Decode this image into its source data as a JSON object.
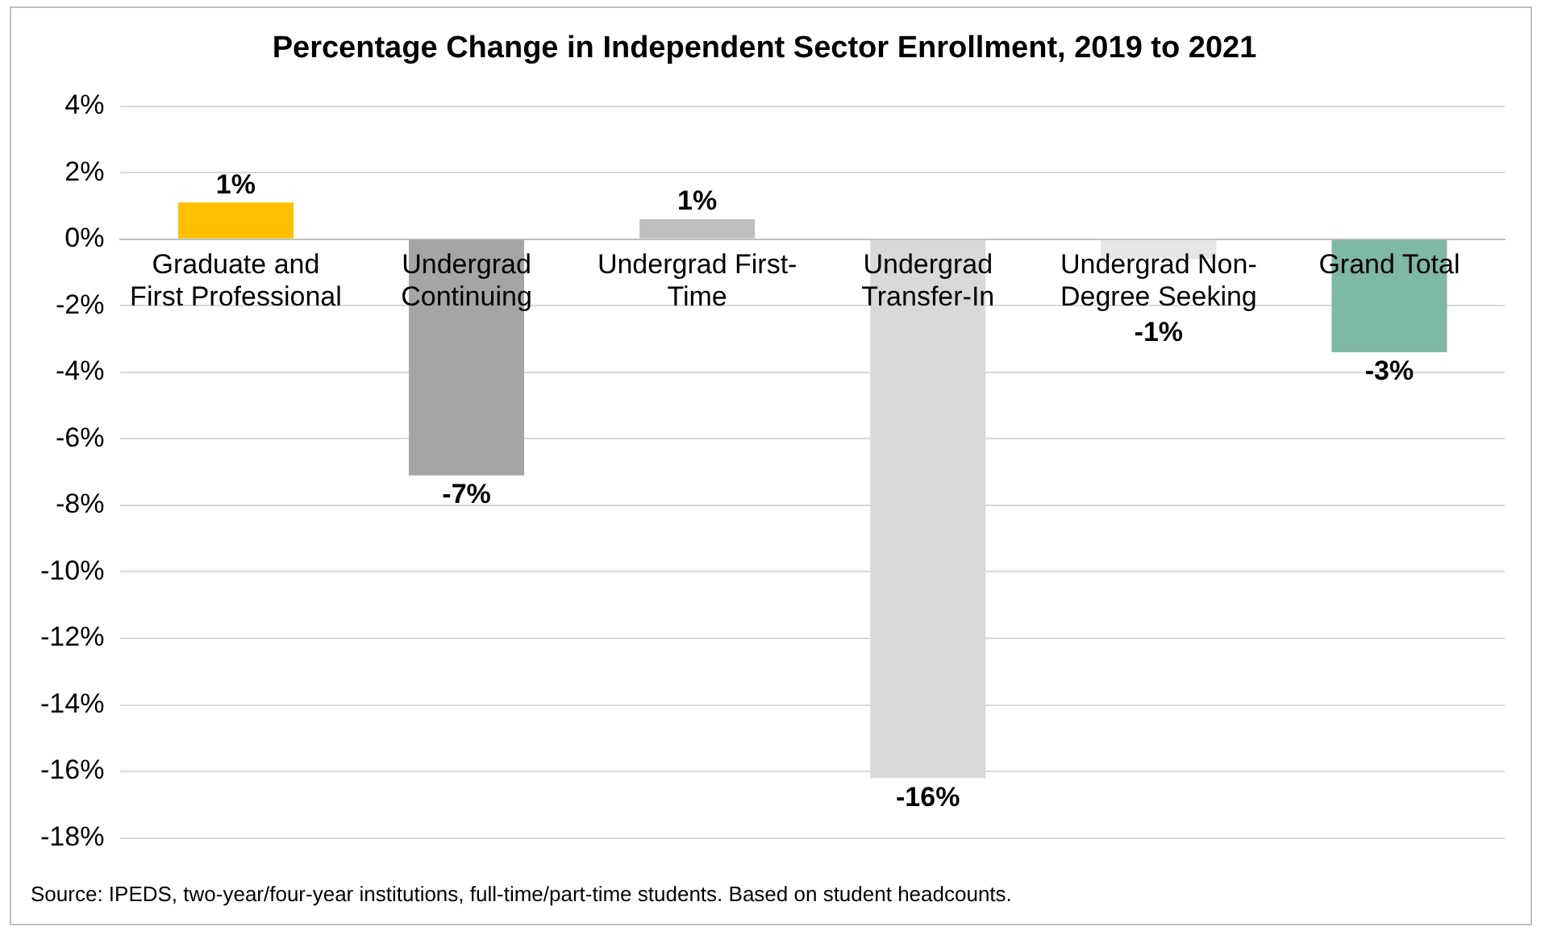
{
  "chart_data": {
    "type": "bar",
    "title": "Percentage Change in Independent Sector Enrollment, 2019 to 2021",
    "categories": [
      "Graduate and First Professional",
      "Undergrad Continuing",
      "Undergrad First-Time",
      "Undergrad Transfer-In",
      "Undergrad Non-Degree Seeking",
      "Grand Total"
    ],
    "values": [
      1.1,
      -7.1,
      0.6,
      -16.2,
      -0.6,
      -3.4
    ],
    "colors": [
      "#ffc000",
      "#a5a5a5",
      "#bfbfbf",
      "#d9d9d9",
      "#e7e6e6",
      "#7fb8a4"
    ],
    "value_labels": [
      "1%",
      "-7%",
      "1%",
      "-16%",
      "-1%",
      "-3%"
    ],
    "ylim": [
      -18,
      4
    ],
    "yticks": [
      {
        "value": -18,
        "label": "-18%"
      },
      {
        "value": -16,
        "label": "-16%"
      },
      {
        "value": -14,
        "label": "-14%"
      },
      {
        "value": -12,
        "label": "-12%"
      },
      {
        "value": -10,
        "label": "-10%"
      },
      {
        "value": -8,
        "label": "-8%"
      },
      {
        "value": -6,
        "label": "-6%"
      },
      {
        "value": -4,
        "label": "-4%"
      },
      {
        "value": -2,
        "label": "-2%"
      },
      {
        "value": 0,
        "label": "0%"
      },
      {
        "value": 2,
        "label": "2%"
      },
      {
        "value": 4,
        "label": "4%"
      }
    ],
    "grid": "y",
    "annotations": [
      "Source: IPEDS, two-year/four-year institutions, full-time/part-time students. Based on student headcounts."
    ]
  }
}
